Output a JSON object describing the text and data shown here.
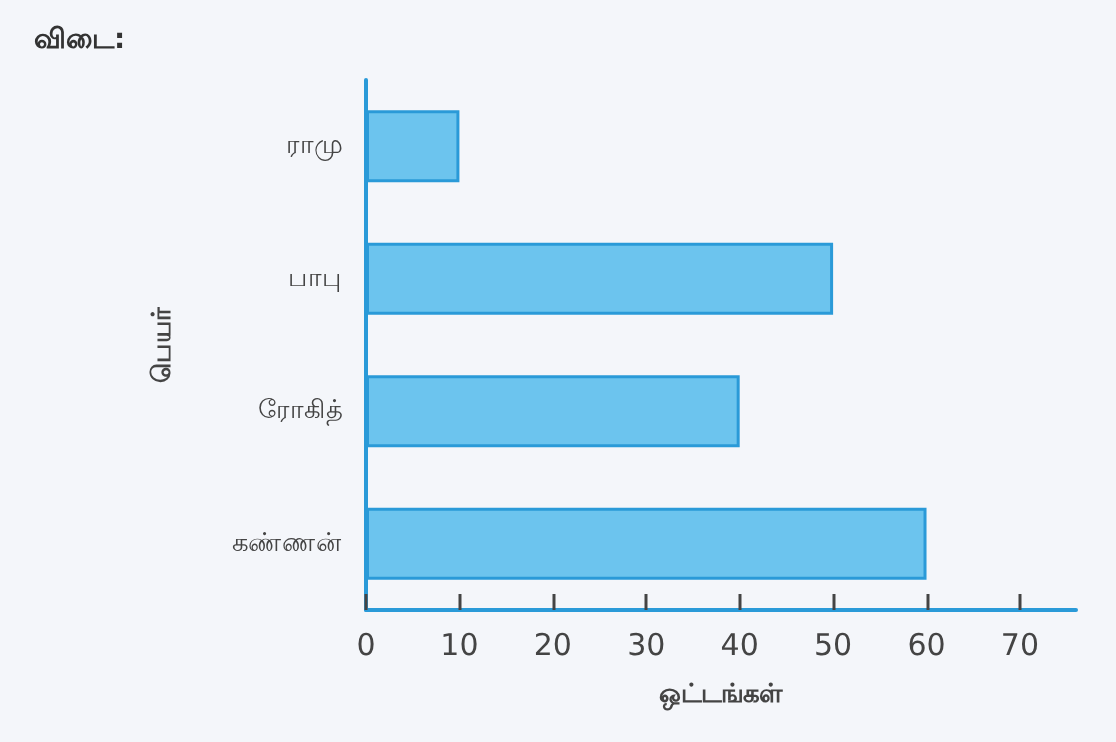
{
  "chart_data": {
    "type": "bar",
    "orientation": "horizontal",
    "title": "விடை:",
    "xlabel": "ஒட்டங்கள்",
    "ylabel": "பெயர்",
    "categories": [
      "ராமு",
      "பாபு",
      "ரோகித்",
      "கண்ணன்"
    ],
    "values": [
      10,
      50,
      40,
      60
    ],
    "color": "#6cc4ee",
    "xlim": [
      0,
      76
    ],
    "xticks": [
      0,
      10,
      20,
      30,
      40,
      50,
      60,
      70
    ],
    "grid": false
  }
}
